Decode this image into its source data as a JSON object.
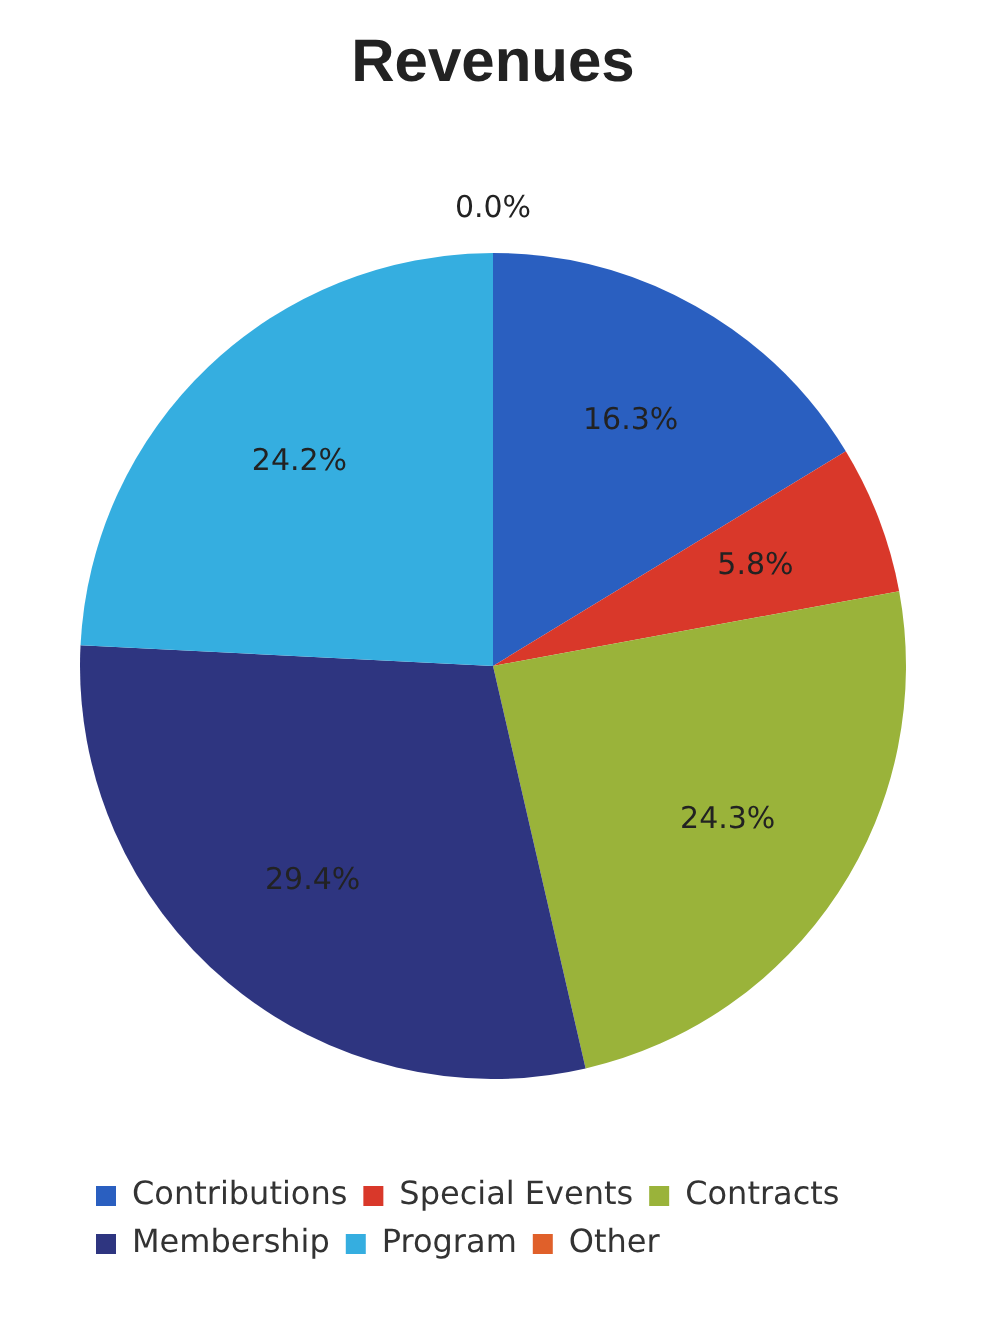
{
  "chart_data": {
    "type": "pie",
    "title": "Revenues",
    "categories": [
      "Contributions",
      "Special Events",
      "Contracts",
      "Membership",
      "Program",
      "Other"
    ],
    "values": [
      16.3,
      5.8,
      24.3,
      29.4,
      24.2,
      0.0
    ],
    "colors": [
      "#2a5fc0",
      "#d9382a",
      "#9ab33a",
      "#2e3580",
      "#35aee0",
      "#e0602a"
    ],
    "value_labels": [
      "16.3%",
      "5.8%",
      "24.3%",
      "29.4%",
      "24.2%",
      "0.0%"
    ],
    "legend": "bottom"
  }
}
